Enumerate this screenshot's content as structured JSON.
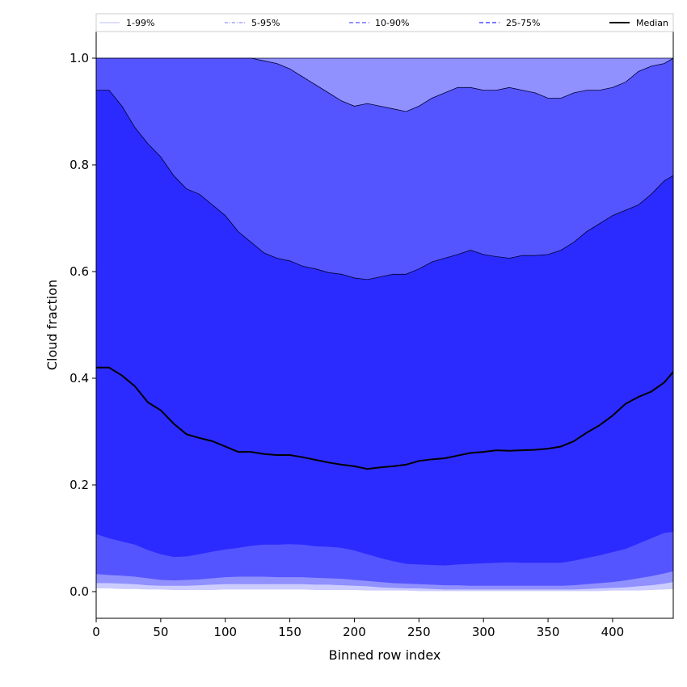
{
  "chart_data": {
    "type": "area",
    "title": "",
    "xlabel": "Binned row index",
    "ylabel": "Cloud fraction",
    "xlim": [
      0,
      447
    ],
    "ylim": [
      -0.05,
      1.05
    ],
    "xticks": [
      0,
      50,
      100,
      150,
      200,
      250,
      300,
      350,
      400
    ],
    "yticks": [
      0.0,
      0.2,
      0.4,
      0.6,
      0.8,
      1.0
    ],
    "ytick_labels": [
      "0.0",
      "0.2",
      "0.4",
      "0.6",
      "0.8",
      "1.0"
    ],
    "grid": false,
    "legend_position": "top",
    "x": [
      0,
      10,
      20,
      30,
      40,
      50,
      60,
      70,
      80,
      90,
      100,
      110,
      120,
      130,
      140,
      150,
      160,
      170,
      180,
      190,
      200,
      210,
      220,
      230,
      240,
      250,
      260,
      270,
      280,
      290,
      300,
      310,
      320,
      330,
      340,
      350,
      360,
      370,
      380,
      390,
      400,
      410,
      420,
      430,
      440,
      447
    ],
    "bands": [
      {
        "name": "1-99%",
        "color": "#ccccff",
        "lower": [
          0.006,
          0.006,
          0.005,
          0.005,
          0.004,
          0.004,
          0.003,
          0.003,
          0.003,
          0.003,
          0.004,
          0.004,
          0.004,
          0.004,
          0.004,
          0.004,
          0.004,
          0.003,
          0.003,
          0.003,
          0.003,
          0.002,
          0.002,
          0.002,
          0.002,
          0.001,
          0.001,
          0.001,
          0.001,
          0.001,
          0.001,
          0.001,
          0.001,
          0.001,
          0.001,
          0.001,
          0.001,
          0.001,
          0.001,
          0.001,
          0.002,
          0.002,
          0.002,
          0.003,
          0.004,
          0.005
        ],
        "upper": [
          1.0,
          1.0,
          1.0,
          1.0,
          1.0,
          1.0,
          1.0,
          1.0,
          1.0,
          1.0,
          1.0,
          1.0,
          1.0,
          1.0,
          1.0,
          1.0,
          1.0,
          1.0,
          1.0,
          1.0,
          1.0,
          1.0,
          1.0,
          1.0,
          1.0,
          1.0,
          1.0,
          1.0,
          1.0,
          1.0,
          1.0,
          1.0,
          1.0,
          1.0,
          1.0,
          1.0,
          1.0,
          1.0,
          1.0,
          1.0,
          1.0,
          1.0,
          1.0,
          1.0,
          1.0,
          1.0
        ]
      },
      {
        "name": "5-95%",
        "color": "#9090ff",
        "lower": [
          0.016,
          0.016,
          0.015,
          0.014,
          0.012,
          0.011,
          0.011,
          0.011,
          0.012,
          0.013,
          0.014,
          0.014,
          0.014,
          0.014,
          0.014,
          0.014,
          0.014,
          0.013,
          0.013,
          0.012,
          0.011,
          0.01,
          0.008,
          0.007,
          0.006,
          0.006,
          0.005,
          0.004,
          0.004,
          0.004,
          0.004,
          0.004,
          0.004,
          0.004,
          0.004,
          0.004,
          0.004,
          0.004,
          0.005,
          0.006,
          0.007,
          0.008,
          0.01,
          0.012,
          0.015,
          0.018
        ],
        "upper": [
          1.0,
          1.0,
          1.0,
          1.0,
          1.0,
          1.0,
          1.0,
          1.0,
          1.0,
          1.0,
          1.0,
          1.0,
          1.0,
          1.0,
          1.0,
          1.0,
          1.0,
          1.0,
          1.0,
          1.0,
          1.0,
          1.0,
          1.0,
          1.0,
          1.0,
          1.0,
          1.0,
          1.0,
          1.0,
          1.0,
          1.0,
          1.0,
          1.0,
          1.0,
          1.0,
          1.0,
          1.0,
          1.0,
          1.0,
          1.0,
          1.0,
          1.0,
          1.0,
          1.0,
          1.0,
          1.0
        ]
      },
      {
        "name": "10-90%",
        "color": "#5555ff",
        "lower": [
          0.033,
          0.031,
          0.03,
          0.028,
          0.025,
          0.022,
          0.021,
          0.022,
          0.023,
          0.025,
          0.027,
          0.028,
          0.028,
          0.028,
          0.027,
          0.027,
          0.027,
          0.026,
          0.025,
          0.024,
          0.022,
          0.02,
          0.018,
          0.016,
          0.015,
          0.014,
          0.013,
          0.012,
          0.012,
          0.011,
          0.011,
          0.011,
          0.011,
          0.011,
          0.011,
          0.011,
          0.011,
          0.012,
          0.014,
          0.016,
          0.018,
          0.021,
          0.025,
          0.029,
          0.034,
          0.038
        ],
        "upper": [
          1.0,
          1.0,
          1.0,
          1.0,
          1.0,
          1.0,
          1.0,
          1.0,
          1.0,
          1.0,
          1.0,
          1.0,
          1.0,
          0.995,
          0.99,
          0.98,
          0.965,
          0.95,
          0.935,
          0.92,
          0.91,
          0.915,
          0.91,
          0.905,
          0.9,
          0.91,
          0.925,
          0.935,
          0.945,
          0.945,
          0.94,
          0.94,
          0.945,
          0.94,
          0.935,
          0.925,
          0.925,
          0.935,
          0.94,
          0.94,
          0.945,
          0.955,
          0.975,
          0.985,
          0.99,
          1.0
        ]
      },
      {
        "name": "25-75%",
        "color": "#2b2bff",
        "lower": [
          0.108,
          0.1,
          0.094,
          0.088,
          0.078,
          0.07,
          0.065,
          0.066,
          0.07,
          0.075,
          0.079,
          0.082,
          0.086,
          0.088,
          0.088,
          0.089,
          0.088,
          0.085,
          0.084,
          0.082,
          0.077,
          0.07,
          0.063,
          0.057,
          0.052,
          0.051,
          0.05,
          0.049,
          0.051,
          0.052,
          0.053,
          0.054,
          0.055,
          0.054,
          0.054,
          0.054,
          0.054,
          0.058,
          0.063,
          0.068,
          0.074,
          0.08,
          0.09,
          0.1,
          0.11,
          0.112
        ],
        "upper": [
          0.94,
          0.94,
          0.91,
          0.87,
          0.84,
          0.815,
          0.78,
          0.755,
          0.745,
          0.725,
          0.705,
          0.675,
          0.655,
          0.635,
          0.625,
          0.62,
          0.61,
          0.605,
          0.598,
          0.595,
          0.588,
          0.585,
          0.59,
          0.595,
          0.595,
          0.605,
          0.618,
          0.625,
          0.632,
          0.64,
          0.632,
          0.628,
          0.625,
          0.63,
          0.63,
          0.632,
          0.64,
          0.655,
          0.675,
          0.69,
          0.705,
          0.715,
          0.725,
          0.745,
          0.77,
          0.78
        ]
      }
    ],
    "series": [
      {
        "name": "Median",
        "color": "#000000",
        "values": [
          0.42,
          0.42,
          0.405,
          0.385,
          0.355,
          0.34,
          0.315,
          0.295,
          0.288,
          0.282,
          0.272,
          0.262,
          0.262,
          0.258,
          0.256,
          0.256,
          0.252,
          0.247,
          0.242,
          0.238,
          0.235,
          0.23,
          0.233,
          0.235,
          0.238,
          0.245,
          0.248,
          0.25,
          0.255,
          0.26,
          0.262,
          0.265,
          0.264,
          0.265,
          0.266,
          0.268,
          0.272,
          0.282,
          0.298,
          0.312,
          0.33,
          0.352,
          0.365,
          0.375,
          0.392,
          0.412
        ]
      }
    ],
    "legend": [
      {
        "label": "1-99%",
        "color": "#ccccff",
        "style": "solid"
      },
      {
        "label": "5-95%",
        "color": "#9090ff",
        "style": "dashdot"
      },
      {
        "label": "10-90%",
        "color": "#5555ff",
        "style": "dashed"
      },
      {
        "label": "25-75%",
        "color": "#2b2bff",
        "style": "dashed"
      },
      {
        "label": "Median",
        "color": "#000000",
        "style": "solid"
      }
    ]
  }
}
